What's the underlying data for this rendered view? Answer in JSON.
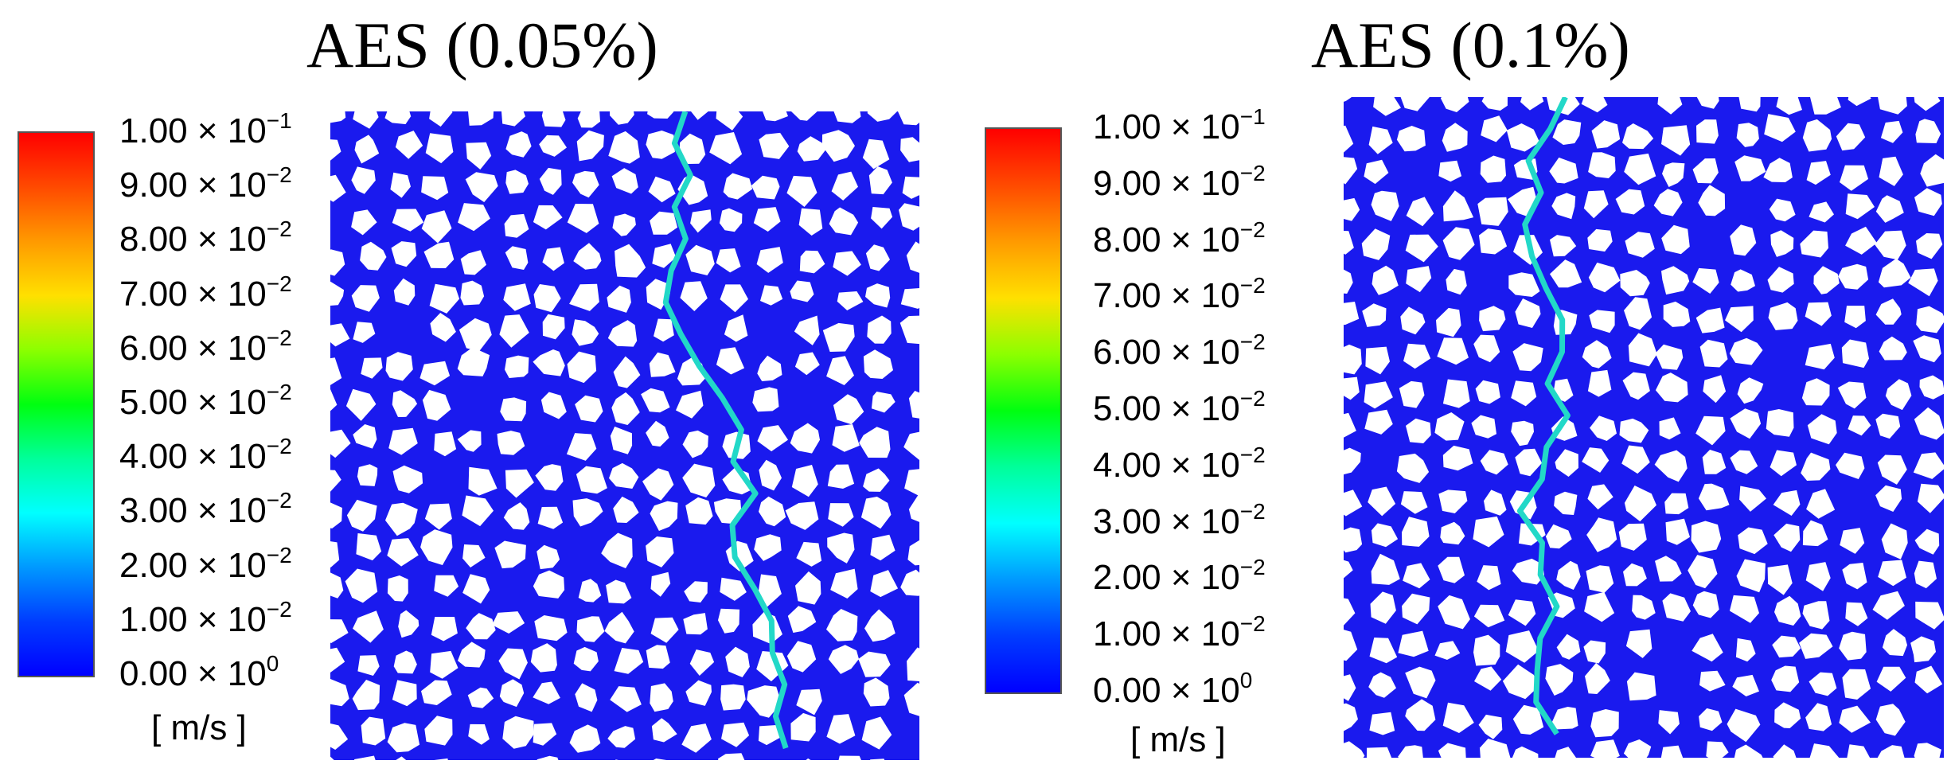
{
  "panels": [
    {
      "title": "AES (0.05%)",
      "colorbar": {
        "ticks": [
          {
            "mantissa": "1.00",
            "exponent": "−1"
          },
          {
            "mantissa": "9.00",
            "exponent": "−2"
          },
          {
            "mantissa": "8.00",
            "exponent": "−2"
          },
          {
            "mantissa": "7.00",
            "exponent": "−2"
          },
          {
            "mantissa": "6.00",
            "exponent": "−2"
          },
          {
            "mantissa": "5.00",
            "exponent": "−2"
          },
          {
            "mantissa": "4.00",
            "exponent": "−2"
          },
          {
            "mantissa": "3.00",
            "exponent": "−2"
          },
          {
            "mantissa": "2.00",
            "exponent": "−2"
          },
          {
            "mantissa": "1.00",
            "exponent": "−2"
          },
          {
            "mantissa": "0.00",
            "exponent": "0"
          }
        ],
        "unit": "[ m/s ]",
        "range": [
          0,
          0.1
        ]
      }
    },
    {
      "title": "AES (0.1%)",
      "colorbar": {
        "ticks": [
          {
            "mantissa": "1.00",
            "exponent": "−1"
          },
          {
            "mantissa": "9.00",
            "exponent": "−2"
          },
          {
            "mantissa": "8.00",
            "exponent": "−2"
          },
          {
            "mantissa": "7.00",
            "exponent": "−2"
          },
          {
            "mantissa": "6.00",
            "exponent": "−2"
          },
          {
            "mantissa": "5.00",
            "exponent": "−2"
          },
          {
            "mantissa": "4.00",
            "exponent": "−2"
          },
          {
            "mantissa": "3.00",
            "exponent": "−2"
          },
          {
            "mantissa": "2.00",
            "exponent": "−2"
          },
          {
            "mantissa": "1.00",
            "exponent": "−2"
          },
          {
            "mantissa": "0.00",
            "exponent": "0"
          }
        ],
        "unit": "[ m/s ]",
        "range": [
          0,
          0.1
        ]
      }
    }
  ],
  "colors": {
    "pore_space": "#1a1aee",
    "solid_grain": "#ffffff",
    "colormap": [
      "#0000ff",
      "#00ffff",
      "#00ff10",
      "#ffe000",
      "#ff0000"
    ]
  }
}
